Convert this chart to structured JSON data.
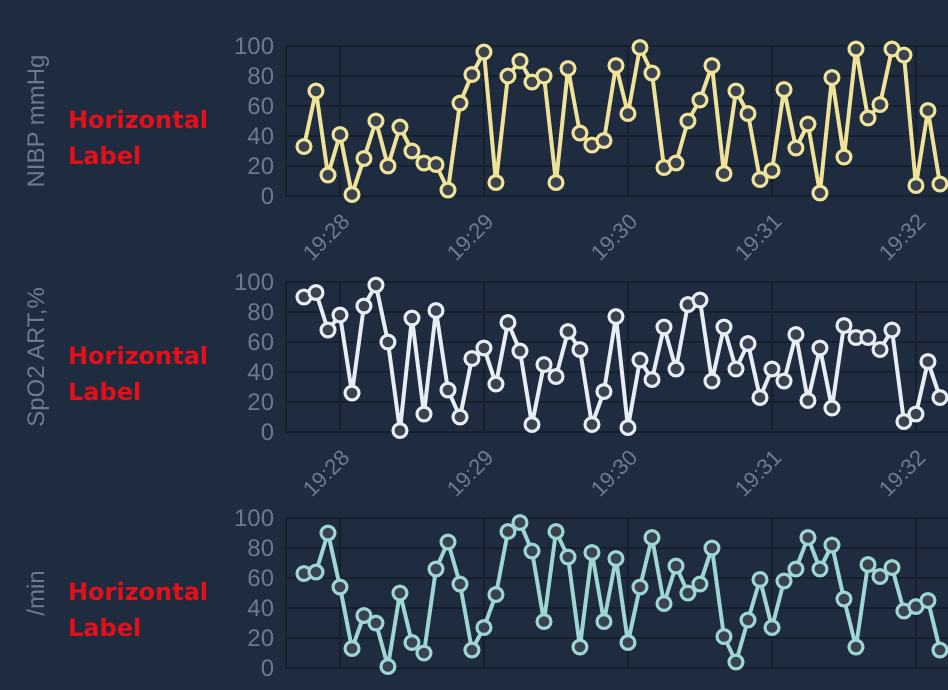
{
  "chart_data": [
    {
      "type": "line",
      "ylabel": "NIBP mmHg",
      "annotations": [
        "Horizontal Label"
      ],
      "marker": "circle",
      "line_style": "solid",
      "grid": true,
      "x": [
        19.4625,
        19.46389,
        19.46528,
        19.46667,
        19.46806,
        19.46944,
        19.47083,
        19.47222,
        19.47361,
        19.475,
        19.47639,
        19.47778,
        19.47917,
        19.48056,
        19.48194,
        19.48333,
        19.48472,
        19.48611,
        19.4875,
        19.48889,
        19.49028,
        19.49167,
        19.49306,
        19.49444,
        19.49583,
        19.49722,
        19.49861,
        19.5,
        19.50139,
        19.50278,
        19.50417,
        19.50556,
        19.50694,
        19.50833,
        19.50972,
        19.51111,
        19.5125,
        19.51389,
        19.51528,
        19.51667,
        19.51806,
        19.51944,
        19.52083,
        19.52222,
        19.52361,
        19.525,
        19.52639,
        19.52778,
        19.52917,
        19.53056,
        19.53194,
        19.53333,
        19.53472,
        19.53611
      ],
      "xlim": [
        19.46042,
        19.53704
      ],
      "xticks": [
        {
          "value": 19.46667,
          "label": "19:28"
        },
        {
          "value": 19.48333,
          "label": "19:29"
        },
        {
          "value": 19.5,
          "label": "19:30"
        },
        {
          "value": 19.51667,
          "label": "19:31"
        },
        {
          "value": 19.53333,
          "label": "19:32"
        }
      ],
      "ylim": [
        0,
        100
      ],
      "yticks": [
        0,
        20,
        40,
        60,
        80,
        100
      ],
      "series": [
        {
          "color": "#efe39a",
          "values": [
            33,
            70,
            14,
            41,
            1,
            25,
            50,
            20,
            46,
            30,
            22,
            21,
            4,
            62,
            81,
            96,
            9,
            80,
            90,
            76,
            80,
            9,
            85,
            42,
            34,
            37,
            87,
            55,
            99,
            82,
            19,
            22,
            50,
            64,
            87,
            15,
            70,
            55,
            11,
            17,
            71,
            32,
            48,
            2,
            79,
            26,
            98,
            52,
            61,
            98,
            94,
            7,
            57,
            8
          ]
        }
      ]
    },
    {
      "type": "line",
      "ylabel": "SpO2 ART,%",
      "annotations": [
        "Horizontal Label"
      ],
      "marker": "circle",
      "line_style": "solid",
      "grid": true,
      "x": [
        19.4625,
        19.46389,
        19.46528,
        19.46667,
        19.46806,
        19.46944,
        19.47083,
        19.47222,
        19.47361,
        19.475,
        19.47639,
        19.47778,
        19.47917,
        19.48056,
        19.48194,
        19.48333,
        19.48472,
        19.48611,
        19.4875,
        19.48889,
        19.49028,
        19.49167,
        19.49306,
        19.49444,
        19.49583,
        19.49722,
        19.49861,
        19.5,
        19.50139,
        19.50278,
        19.50417,
        19.50556,
        19.50694,
        19.50833,
        19.50972,
        19.51111,
        19.5125,
        19.51389,
        19.51528,
        19.51667,
        19.51806,
        19.51944,
        19.52083,
        19.52222,
        19.52361,
        19.525,
        19.52639,
        19.52778,
        19.52917,
        19.53056,
        19.53194,
        19.53333,
        19.53472,
        19.53611
      ],
      "xlim": [
        19.46042,
        19.53704
      ],
      "xticks": [
        {
          "value": 19.46667,
          "label": "19:28"
        },
        {
          "value": 19.48333,
          "label": "19:29"
        },
        {
          "value": 19.5,
          "label": "19:30"
        },
        {
          "value": 19.51667,
          "label": "19:31"
        },
        {
          "value": 19.53333,
          "label": "19:32"
        }
      ],
      "ylim": [
        0,
        100
      ],
      "yticks": [
        0,
        20,
        40,
        60,
        80,
        100
      ],
      "series": [
        {
          "color": "#e6edf5",
          "values": [
            90,
            93,
            68,
            78,
            26,
            84,
            98,
            60,
            1,
            76,
            12,
            81,
            28,
            10,
            49,
            56,
            32,
            73,
            54,
            5,
            45,
            37,
            67,
            55,
            5,
            27,
            77,
            3,
            48,
            35,
            70,
            42,
            85,
            88,
            34,
            70,
            42,
            59,
            23,
            42,
            34,
            65,
            21,
            56,
            16,
            71,
            63,
            63,
            55,
            68,
            7,
            12,
            47,
            23
          ]
        }
      ]
    },
    {
      "type": "line",
      "ylabel": "/min",
      "annotations": [
        "Horizontal Label"
      ],
      "marker": "circle",
      "line_style": "solid",
      "grid": true,
      "x": [
        19.4625,
        19.46389,
        19.46528,
        19.46667,
        19.46806,
        19.46944,
        19.47083,
        19.47222,
        19.47361,
        19.475,
        19.47639,
        19.47778,
        19.47917,
        19.48056,
        19.48194,
        19.48333,
        19.48472,
        19.48611,
        19.4875,
        19.48889,
        19.49028,
        19.49167,
        19.49306,
        19.49444,
        19.49583,
        19.49722,
        19.49861,
        19.5,
        19.50139,
        19.50278,
        19.50417,
        19.50556,
        19.50694,
        19.50833,
        19.50972,
        19.51111,
        19.5125,
        19.51389,
        19.51528,
        19.51667,
        19.51806,
        19.51944,
        19.52083,
        19.52222,
        19.52361,
        19.525,
        19.52639,
        19.52778,
        19.52917,
        19.53056,
        19.53194,
        19.53333,
        19.53472,
        19.53611
      ],
      "xlim": [
        19.46042,
        19.53704
      ],
      "xticks": [
        {
          "value": 19.46667,
          "label": null
        },
        {
          "value": 19.48333,
          "label": null
        },
        {
          "value": 19.5,
          "label": null
        },
        {
          "value": 19.51667,
          "label": null
        },
        {
          "value": 19.53333,
          "label": null
        }
      ],
      "ylim": [
        0,
        100
      ],
      "yticks": [
        0,
        20,
        40,
        60,
        80,
        100
      ],
      "tick_labels": "y",
      "series": [
        {
          "color": "#9ed6d6",
          "values": [
            63,
            64,
            90,
            54,
            13,
            35,
            30,
            1,
            50,
            17,
            10,
            66,
            84,
            56,
            12,
            27,
            49,
            91,
            97,
            78,
            31,
            91,
            74,
            14,
            77,
            31,
            73,
            17,
            54,
            87,
            43,
            68,
            50,
            56,
            80,
            21,
            4,
            32,
            59,
            27,
            58,
            66,
            87,
            66,
            82,
            46,
            14,
            69,
            61,
            67,
            38,
            41,
            45,
            12
          ]
        }
      ]
    }
  ]
}
